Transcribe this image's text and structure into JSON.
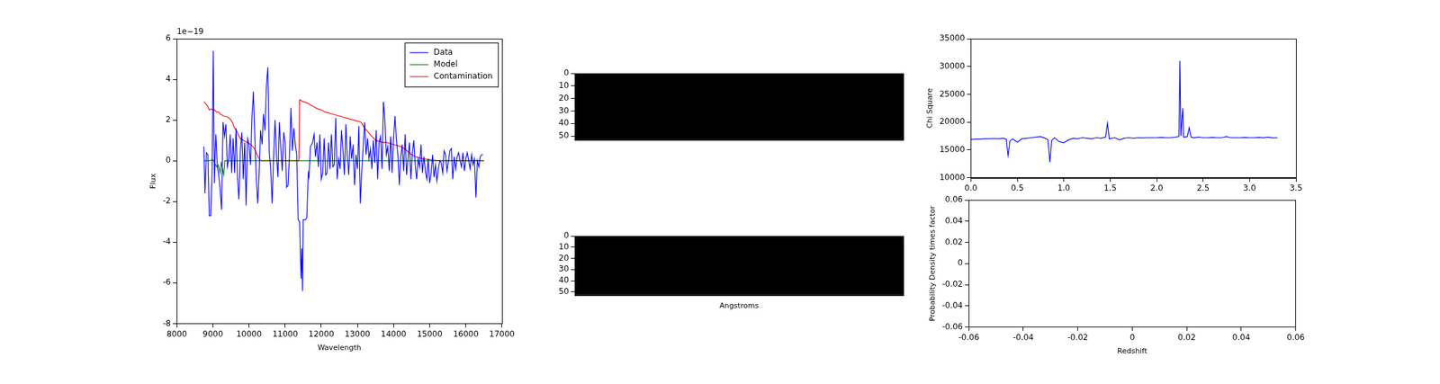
{
  "chart_data": [
    {
      "type": "line",
      "x_label": "Wavelength",
      "y_label": "Flux",
      "annotations": [
        "1e−19"
      ],
      "xlim": [
        8000,
        17000
      ],
      "xticks": [
        8000,
        9000,
        10000,
        11000,
        12000,
        13000,
        14000,
        15000,
        16000,
        17000
      ],
      "ylim": [
        -8,
        6
      ],
      "yticks": [
        -8,
        -6,
        -4,
        -2,
        0,
        2,
        4,
        6
      ],
      "grid": false,
      "legend": "upper right",
      "series": [
        {
          "name": "Data",
          "color": "#0000ff",
          "x": [
            8750,
            8780,
            8820,
            8860,
            8900,
            8940,
            8980,
            9010,
            9040,
            9080,
            9120,
            9160,
            9200,
            9240,
            9280,
            9320,
            9360,
            9400,
            9440,
            9480,
            9520,
            9560,
            9600,
            9640,
            9680,
            9720,
            9760,
            9800,
            9840,
            9880,
            9920,
            9960,
            10000,
            10040,
            10080,
            10120,
            10160,
            10200,
            10240,
            10280,
            10320,
            10360,
            10400,
            10440,
            10480,
            10520,
            10560,
            10600,
            10640,
            10680,
            10720,
            10760,
            10800,
            10840,
            10880,
            10920,
            10960,
            11000,
            11040,
            11080,
            11120,
            11160,
            11200,
            11240,
            11280,
            11320,
            11360,
            11400,
            11440,
            11460,
            11480,
            11500,
            11560,
            11600,
            11640,
            11660,
            11700,
            11760,
            11800,
            11840,
            11880,
            11920,
            11960,
            12000,
            12040,
            12080,
            12120,
            12160,
            12200,
            12240,
            12280,
            12320,
            12360,
            12400,
            12440,
            12480,
            12520,
            12560,
            12600,
            12640,
            12680,
            12720,
            12760,
            12800,
            12840,
            12880,
            12920,
            12960,
            13000,
            13040,
            13080,
            13120,
            13160,
            13200,
            13240,
            13280,
            13320,
            13360,
            13400,
            13440,
            13480,
            13520,
            13560,
            13600,
            13640,
            13680,
            13720,
            13760,
            13800,
            13840,
            13880,
            13920,
            13960,
            14000,
            14040,
            14080,
            14120,
            14160,
            14200,
            14240,
            14280,
            14320,
            14360,
            14400,
            14440,
            14480,
            14520,
            14560,
            14600,
            14640,
            14680,
            14720,
            14760,
            14800,
            14840,
            14880,
            14920,
            14960,
            15000,
            15040,
            15080,
            15120,
            15160,
            15200,
            15240,
            15280,
            15320,
            15360,
            15400,
            15440,
            15480,
            15520,
            15560,
            15600,
            15640,
            15680,
            15720,
            15760,
            15800,
            15840,
            15880,
            15920,
            15960,
            16000,
            16040,
            16080,
            16120,
            16160,
            16200,
            16240,
            16280,
            16320,
            16360,
            16400,
            16440,
            16480
          ],
          "values": [
            0.7,
            -1.6,
            0.4,
            0.3,
            -2.7,
            -2.7,
            -0.4,
            5.4,
            -1.1,
            1.3,
            -0.2,
            -0.7,
            -1.4,
            -2.4,
            1.9,
            1.2,
            1.8,
            -0.3,
            0.1,
            1.3,
            -0.6,
            1.1,
            -0.6,
            1.6,
            -0.8,
            -1.9,
            0.5,
            1.4,
            -0.9,
            0.9,
            -2.2,
            1.1,
            0.8,
            -0.2,
            2.1,
            3.4,
            1.2,
            -0.8,
            -2.1,
            -0.6,
            1.5,
            0.8,
            2.3,
            1.5,
            3.6,
            4.6,
            0.4,
            -0.4,
            -2.1,
            0.2,
            2.0,
            0.3,
            -0.8,
            1.9,
            0.6,
            -0.5,
            1.4,
            0.9,
            -1.3,
            -1.2,
            0.3,
            2.6,
            0.5,
            1.6,
            0.8,
            0.3,
            -2.9,
            -3.0,
            -5.8,
            -4.3,
            -6.4,
            -2.9,
            -2.9,
            -2.8,
            -0.6,
            -0.8,
            0.7,
            0.9,
            1.3,
            0.2,
            0.9,
            -0.3,
            1.3,
            -0.9,
            -0.6,
            1.1,
            -0.7,
            -0.6,
            0.9,
            -0.4,
            1.3,
            -0.3,
            -0.2,
            2.1,
            -0.9,
            0.1,
            -0.4,
            1.5,
            0.5,
            -0.7,
            1.8,
            0.2,
            -0.7,
            1.2,
            0.1,
            0.8,
            -1.2,
            0.3,
            -0.4,
            1.7,
            -2.1,
            -0.5,
            0.7,
            1.9,
            0.3,
            1.1,
            0.1,
            0.6,
            -0.4,
            1.0,
            -0.1,
            1.5,
            -0.9,
            0.9,
            1.2,
            -0.4,
            2.9,
            2.0,
            0.3,
            0.7,
            -0.5,
            1.2,
            -0.6,
            1.1,
            2.2,
            1.0,
            0.3,
            -1.2,
            0.2,
            0.8,
            -0.5,
            1.3,
            -0.7,
            0.1,
            0.9,
            -0.9,
            0.4,
            1.0,
            -0.2,
            -0.9,
            0.1,
            -0.3,
            0.8,
            -0.6,
            0.2,
            -0.5,
            -0.9,
            0.1,
            -1.1,
            -0.6,
            0.3,
            -0.8,
            -0.2,
            -1.0,
            -0.4,
            0.0,
            -0.1,
            -0.6,
            0.5,
            0.3,
            -0.5,
            0.0,
            0.5,
            0.6,
            -0.9,
            0.2,
            -0.4,
            0.2,
            0.4,
            0.0,
            -0.3,
            0.4,
            -0.5,
            0.1,
            0.4,
            0.0,
            -0.4,
            0.3,
            -0.2,
            0.1,
            -1.8,
            0.0,
            -0.3,
            0.2,
            0.3,
            0.3
          ]
        },
        {
          "name": "Model",
          "color": "#008000",
          "x": [
            8750,
            8800,
            8900,
            9000,
            9050,
            9100,
            9150,
            9200,
            9230,
            9270,
            9300,
            9330,
            9400,
            16500
          ],
          "values": [
            0,
            0,
            0,
            0.05,
            -0.1,
            -0.3,
            -0.2,
            -0.6,
            -0.1,
            -0.4,
            -0.7,
            0,
            0,
            0
          ]
        },
        {
          "name": "Contamination",
          "color": "#ff0000",
          "x": [
            8750,
            8800,
            8850,
            8900,
            8950,
            9000,
            9050,
            9100,
            9150,
            9200,
            9300,
            9400,
            9450,
            9500,
            9550,
            9600,
            9650,
            9700,
            9750,
            9800,
            9850,
            9900,
            9950,
            10000,
            10050,
            10100,
            10150,
            10200,
            10250,
            10300,
            10350,
            10500,
            11000,
            11380,
            11400,
            11450,
            11500,
            11600,
            11700,
            11800,
            11900,
            12000,
            12100,
            12200,
            12300,
            12400,
            12500,
            12600,
            12700,
            12800,
            12900,
            13000,
            13100,
            13200,
            13300,
            13400,
            13500,
            13600,
            13700,
            13800,
            13900,
            14000,
            14100,
            14200,
            14300,
            14400,
            14500,
            14600,
            14700,
            14800,
            14900,
            15000,
            15200,
            15400,
            16500
          ],
          "values": [
            2.9,
            2.8,
            2.7,
            2.5,
            2.55,
            2.5,
            2.5,
            2.4,
            2.4,
            2.3,
            2.2,
            2.15,
            2.1,
            2.0,
            1.85,
            1.6,
            1.5,
            1.3,
            1.1,
            1.05,
            1.0,
            0.95,
            0.9,
            0.85,
            0.8,
            0.7,
            0.6,
            0.4,
            0.2,
            0.05,
            0.0,
            0.0,
            0.0,
            0.0,
            3.0,
            2.95,
            2.9,
            2.85,
            2.75,
            2.65,
            2.55,
            2.5,
            2.4,
            2.35,
            2.3,
            2.25,
            2.2,
            2.15,
            2.1,
            2.05,
            2.0,
            1.95,
            1.9,
            1.6,
            1.4,
            1.2,
            1.0,
            0.95,
            0.9,
            0.9,
            0.85,
            0.8,
            0.75,
            0.7,
            0.6,
            0.45,
            0.3,
            0.2,
            0.15,
            0.1,
            0.08,
            0.05,
            0.02,
            0.0,
            0.0
          ]
        }
      ]
    },
    {
      "type": "image",
      "color": "#000000",
      "ylim": [
        53,
        0
      ],
      "yticks": [
        0,
        10,
        20,
        30,
        40,
        50
      ],
      "tick_labels": "y",
      "grid": false
    },
    {
      "type": "image",
      "color": "#000000",
      "x_label": "Angstroms",
      "ylim": [
        53,
        0
      ],
      "yticks": [
        0,
        10,
        20,
        30,
        40,
        50
      ],
      "tick_labels": "y",
      "grid": false
    },
    {
      "type": "line",
      "y_label": "Chi Square",
      "grid": false,
      "xlim": [
        0,
        3.5
      ],
      "xticks": [
        {
          "value": 0,
          "label": "0.0"
        },
        0.5,
        {
          "value": 1,
          "label": "1.0"
        },
        1.5,
        {
          "value": 2,
          "label": "2.0"
        },
        2.5,
        {
          "value": 3,
          "label": "3.0"
        },
        3.5
      ],
      "ylim": [
        10000,
        35000
      ],
      "yticks": [
        10000,
        15000,
        20000,
        25000,
        30000,
        35000
      ],
      "series": [
        {
          "color": "#0000ff",
          "x": [
            0,
            0.05,
            0.1,
            0.15,
            0.2,
            0.25,
            0.3,
            0.35,
            0.38,
            0.4,
            0.42,
            0.45,
            0.5,
            0.55,
            0.6,
            0.65,
            0.7,
            0.75,
            0.8,
            0.83,
            0.85,
            0.87,
            0.9,
            0.95,
            1.0,
            1.05,
            1.1,
            1.15,
            1.2,
            1.25,
            1.3,
            1.35,
            1.4,
            1.45,
            1.47,
            1.49,
            1.55,
            1.6,
            1.65,
            1.7,
            1.75,
            1.8,
            1.85,
            1.9,
            1.95,
            2.0,
            2.05,
            2.1,
            2.15,
            2.2,
            2.24,
            2.25,
            2.26,
            2.28,
            2.29,
            2.33,
            2.35,
            2.37,
            2.4,
            2.45,
            2.5,
            2.55,
            2.6,
            2.65,
            2.7,
            2.75,
            2.8,
            2.85,
            2.9,
            2.95,
            3.0,
            3.05,
            3.1,
            3.15,
            3.2,
            3.25,
            3.3
          ],
          "values": [
            16900,
            16950,
            16950,
            17000,
            17000,
            17050,
            17000,
            17100,
            16900,
            14000,
            16600,
            17000,
            16400,
            17000,
            17100,
            17200,
            17300,
            17400,
            17100,
            16800,
            12800,
            16700,
            17200,
            16500,
            16300,
            16800,
            17100,
            17000,
            17200,
            17100,
            17000,
            17200,
            17100,
            17300,
            19800,
            17000,
            17200,
            16800,
            17100,
            17200,
            17100,
            17200,
            17150,
            17200,
            17200,
            17200,
            17250,
            17200,
            17200,
            17300,
            17400,
            31000,
            17500,
            22500,
            17300,
            17400,
            19000,
            17300,
            17200,
            17300,
            17200,
            17200,
            17250,
            17200,
            17200,
            17400,
            17200,
            17200,
            17200,
            17250,
            17200,
            17200,
            17250,
            17200,
            17300,
            17150,
            17200
          ]
        }
      ]
    },
    {
      "type": "line",
      "x_label": "Redshift",
      "y_label": "Probability Density times factor",
      "grid": false,
      "xlim": [
        -0.06,
        0.06
      ],
      "xticks": [
        -0.06,
        -0.04,
        -0.02,
        0,
        0.02,
        0.04,
        0.06
      ],
      "ylim": [
        -0.06,
        0.06
      ],
      "yticks": [
        -0.06,
        -0.04,
        -0.02,
        0,
        0.02,
        0.04,
        0.06
      ],
      "series": []
    }
  ]
}
